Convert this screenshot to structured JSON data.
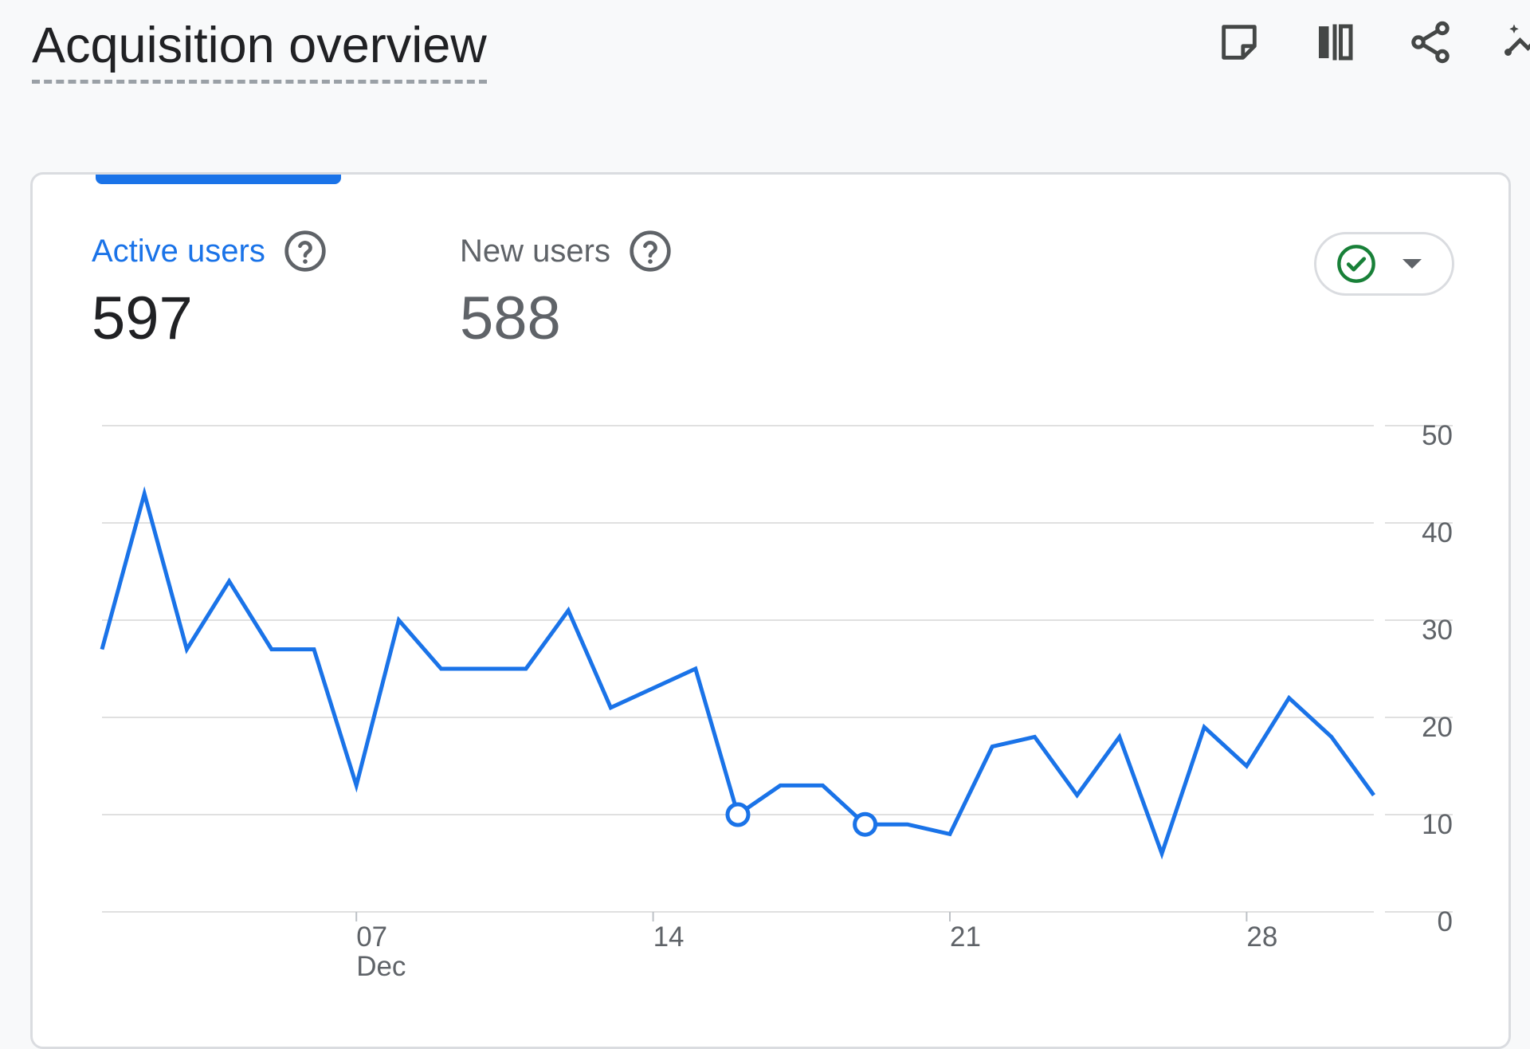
{
  "header": {
    "title": "Acquisition overview",
    "actions": [
      {
        "icon": "note-icon"
      },
      {
        "icon": "compare-icon"
      },
      {
        "icon": "share-icon"
      },
      {
        "icon": "insights-icon"
      }
    ]
  },
  "metrics": {
    "active_users": {
      "label": "Active users",
      "value": "597",
      "selected": true
    },
    "new_users": {
      "label": "New users",
      "value": "588",
      "selected": false
    }
  },
  "compare": {
    "icon": "check-circle-icon",
    "dropdown_icon": "caret-down-icon"
  },
  "colors": {
    "accent": "#1a73e8",
    "check": "#188038",
    "text": "#202124",
    "muted": "#5f6368"
  },
  "chart_data": {
    "type": "line",
    "series": [
      {
        "values": [
          27,
          43,
          27,
          34,
          27,
          27,
          13,
          30,
          25,
          25,
          25,
          31,
          21,
          23,
          25,
          10,
          13,
          13,
          9,
          9,
          8,
          17,
          18,
          12,
          18,
          6,
          19,
          15,
          22,
          18,
          12
        ]
      }
    ],
    "x_tick_labels": [
      "07",
      "14",
      "21",
      "28"
    ],
    "x_tick_sublabel": "Dec",
    "x_tick_indices": [
      6,
      13,
      20,
      27
    ],
    "y_ticks": [
      0,
      10,
      20,
      30,
      40,
      50
    ],
    "ylim": [
      0,
      50
    ],
    "highlighted_indices": [
      15,
      18
    ],
    "grid": true,
    "y_axis_side": "right"
  }
}
